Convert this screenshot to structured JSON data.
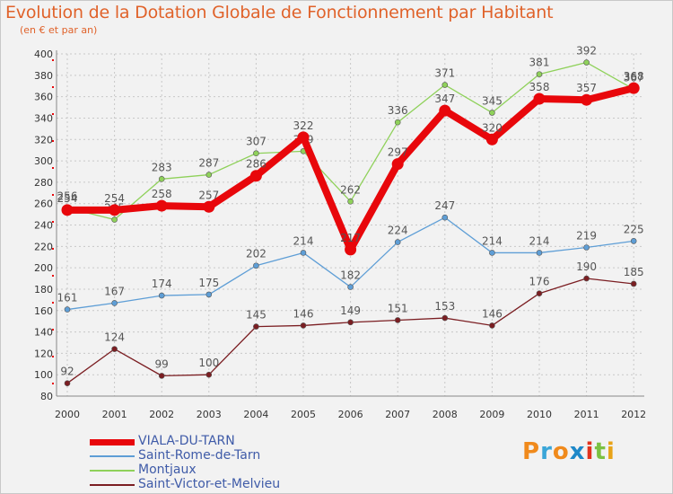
{
  "header": {
    "title": "Evolution de la Dotation Globale de Fonctionnement par Habitant",
    "subtitle": "(en € et par an)"
  },
  "logo": {
    "letters": [
      "P",
      "r",
      "o",
      "x",
      "i",
      "t",
      "i"
    ],
    "colors": [
      "#f08a1c",
      "#3aa6d8",
      "#f08a1c",
      "#1e88c8",
      "#e2331d",
      "#7cc142",
      "#e8a318"
    ]
  },
  "colors": {
    "background": "#f2f2f2",
    "grid": "#c8c8c8",
    "axis_text": "#333333",
    "value_label": "#555555"
  },
  "chart_data": {
    "type": "line",
    "title": "Evolution de la Dotation Globale de Fonctionnement par Habitant",
    "subtitle": "(en € et par an)",
    "xlabel": "",
    "ylabel": "",
    "ylim": [
      80,
      400
    ],
    "ytick_step": 20,
    "yticks": [
      "80",
      "100",
      "120",
      "140",
      "160",
      "180",
      "200",
      "220",
      "240",
      "260",
      "280",
      "300",
      "320",
      "340",
      "360",
      "380",
      "400"
    ],
    "categories": [
      "2000",
      "2001",
      "2002",
      "2003",
      "2004",
      "2005",
      "2006",
      "2007",
      "2008",
      "2009",
      "2010",
      "2011",
      "2012"
    ],
    "grid": true,
    "legend_position": "bottom-left",
    "series": [
      {
        "name": "Saint-Victor-et-Melvieu",
        "color": "#7b1e22",
        "values": [
          92,
          124,
          99,
          100,
          145,
          146,
          149,
          151,
          153,
          146,
          176,
          190,
          185
        ],
        "labels": [
          "92",
          "124",
          "99",
          "100",
          "145",
          "146",
          "149",
          "151",
          "153",
          "146",
          "176",
          "190",
          "185"
        ]
      },
      {
        "name": "Saint-Rome-de-Tarn",
        "color": "#5e9ed6",
        "values": [
          161,
          167,
          174,
          175,
          202,
          214,
          182,
          224,
          247,
          214,
          214,
          219,
          225
        ],
        "labels": [
          "161",
          "167",
          "174",
          "175",
          "202",
          "214",
          "182",
          "224",
          "247",
          "214",
          "214",
          "219",
          "225"
        ]
      },
      {
        "name": "Montjaux",
        "color": "#8fd15a",
        "values": [
          256,
          245,
          283,
          287,
          307,
          309,
          262,
          336,
          371,
          345,
          381,
          392,
          367
        ],
        "labels": [
          "256",
          "245",
          "283",
          "287",
          "307",
          "309",
          "262",
          "336",
          "371",
          "345",
          "381",
          "392",
          "367"
        ]
      },
      {
        "name": "VIALA-DU-TARN",
        "color": "#e8070b",
        "values": [
          254,
          254,
          258,
          257,
          286,
          322,
          217,
          297,
          347,
          320,
          358,
          357,
          368
        ],
        "labels": [
          "254",
          "254",
          "258",
          "257",
          "286",
          "322",
          "217",
          "297",
          "347",
          "320",
          "358",
          "357",
          "368"
        ]
      }
    ]
  },
  "legend": {
    "items": [
      {
        "label": "VIALA-DU-TARN",
        "color": "#e8070b",
        "thick": true
      },
      {
        "label": "Saint-Rome-de-Tarn",
        "color": "#5e9ed6",
        "thick": false
      },
      {
        "label": "Montjaux",
        "color": "#8fd15a",
        "thick": false
      },
      {
        "label": "Saint-Victor-et-Melvieu",
        "color": "#7b1e22",
        "thick": false
      }
    ]
  }
}
